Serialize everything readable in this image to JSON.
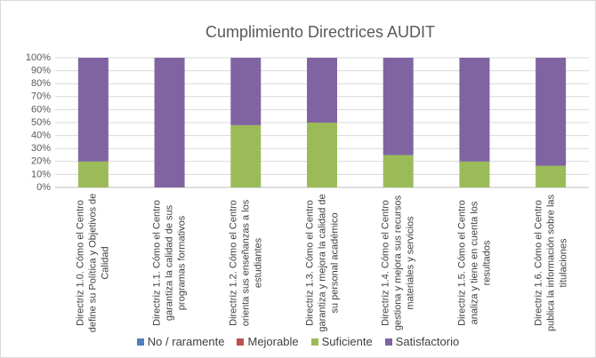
{
  "chart_data": {
    "type": "stacked_bar",
    "title": "Cumplimiento Directrices AUDIT",
    "categories": [
      "Directriz 1.0. Cómo el Centro define su Política y Objetivos de Calidad",
      "Directriz 1.1. Cómo el Centro garantiza la calidad de sus programas formativos",
      "Directriz 1.2. Cómo el Centro orienta sus enseñanzas a los estudiantes",
      "Directriz 1.3. Cómo el Centro garantiza y mejora la calidad de su personal académico",
      "Directriz 1.4. Cómo el Centro gestiona y mejora sus recursos materiales y servicios",
      "Directriz 1.5. Cómo el Centro analiza y tiene en cuenta los resultados",
      "Directriz 1.6. Cómo el Centro publica la información sobre las titulaciones"
    ],
    "series": [
      {
        "name": "No / raramente",
        "color": "#4f81bd",
        "values": [
          0,
          0,
          0,
          0,
          0,
          0,
          0
        ]
      },
      {
        "name": "Mejorable",
        "color": "#c0504d",
        "values": [
          0,
          0,
          0,
          0,
          0,
          0,
          0
        ]
      },
      {
        "name": "Suficiente",
        "color": "#9bbb59",
        "values": [
          20,
          0,
          48,
          50,
          25,
          20,
          16.7
        ]
      },
      {
        "name": "Satisfactorio",
        "color": "#8064a2",
        "values": [
          80,
          100,
          52,
          50,
          75,
          80,
          83.3
        ]
      }
    ],
    "ylim": [
      0,
      100
    ],
    "yticks": [
      {
        "value": 0,
        "label": "0%"
      },
      {
        "value": 10,
        "label": "10%"
      },
      {
        "value": 20,
        "label": "20%"
      },
      {
        "value": 30,
        "label": "30%"
      },
      {
        "value": 40,
        "label": "40%"
      },
      {
        "value": 50,
        "label": "50%"
      },
      {
        "value": 60,
        "label": "60%"
      },
      {
        "value": 70,
        "label": "70%"
      },
      {
        "value": 80,
        "label": "80%"
      },
      {
        "value": 90,
        "label": "90%"
      },
      {
        "value": 100,
        "label": "100%"
      }
    ],
    "grid": true,
    "legend": "bottom"
  }
}
